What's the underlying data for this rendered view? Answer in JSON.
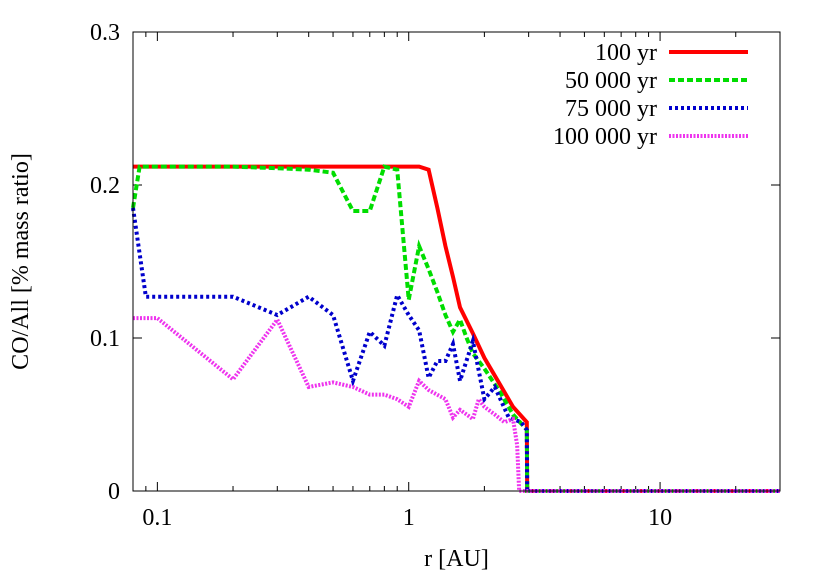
{
  "chart_data": {
    "type": "line",
    "xlabel": "r [AU]",
    "ylabel": "CO/All [% mass ratio]",
    "xscale": "log",
    "xlim": [
      0.08,
      30
    ],
    "ylim": [
      0,
      0.3
    ],
    "x_ticks": [
      {
        "value": 0.1,
        "label": "0.1"
      },
      {
        "value": 1,
        "label": "1"
      },
      {
        "value": 10,
        "label": "10"
      }
    ],
    "y_ticks": [
      {
        "value": 0,
        "label": "0"
      },
      {
        "value": 0.1,
        "label": "0.1"
      },
      {
        "value": 0.2,
        "label": "0.2"
      },
      {
        "value": 0.3,
        "label": "0.3"
      }
    ],
    "grid": false,
    "legend_position": "top-right",
    "series": [
      {
        "name": "100 yr",
        "color": "#ff0000",
        "style": "solid",
        "points": [
          [
            0.08,
            0.212
          ],
          [
            0.1,
            0.212
          ],
          [
            0.2,
            0.212
          ],
          [
            0.5,
            0.212
          ],
          [
            0.8,
            0.212
          ],
          [
            1.0,
            0.212
          ],
          [
            1.1,
            0.212
          ],
          [
            1.2,
            0.21
          ],
          [
            1.3,
            0.185
          ],
          [
            1.4,
            0.16
          ],
          [
            1.5,
            0.14
          ],
          [
            1.6,
            0.12
          ],
          [
            1.8,
            0.103
          ],
          [
            2.0,
            0.087
          ],
          [
            2.3,
            0.07
          ],
          [
            2.6,
            0.055
          ],
          [
            2.95,
            0.045
          ],
          [
            2.96,
            0
          ],
          [
            10,
            0
          ],
          [
            30,
            0
          ]
        ]
      },
      {
        "name": "50 000 yr",
        "color": "#00dd00",
        "style": "dashed",
        "points": [
          [
            0.08,
            0.185
          ],
          [
            0.085,
            0.212
          ],
          [
            0.1,
            0.212
          ],
          [
            0.2,
            0.212
          ],
          [
            0.3,
            0.211
          ],
          [
            0.4,
            0.21
          ],
          [
            0.5,
            0.208
          ],
          [
            0.6,
            0.183
          ],
          [
            0.7,
            0.183
          ],
          [
            0.8,
            0.212
          ],
          [
            0.9,
            0.21
          ],
          [
            1.0,
            0.125
          ],
          [
            1.1,
            0.16
          ],
          [
            1.2,
            0.145
          ],
          [
            1.3,
            0.13
          ],
          [
            1.4,
            0.115
          ],
          [
            1.5,
            0.104
          ],
          [
            1.6,
            0.112
          ],
          [
            1.7,
            0.1
          ],
          [
            1.8,
            0.09
          ],
          [
            2.0,
            0.08
          ],
          [
            2.3,
            0.065
          ],
          [
            2.6,
            0.05
          ],
          [
            2.95,
            0.04
          ],
          [
            2.96,
            0
          ],
          [
            10,
            0
          ],
          [
            30,
            0
          ]
        ]
      },
      {
        "name": "75 000 yr",
        "color": "#0000cc",
        "style": "dotted",
        "points": [
          [
            0.08,
            0.185
          ],
          [
            0.09,
            0.127
          ],
          [
            0.1,
            0.127
          ],
          [
            0.2,
            0.127
          ],
          [
            0.3,
            0.115
          ],
          [
            0.4,
            0.127
          ],
          [
            0.5,
            0.115
          ],
          [
            0.6,
            0.072
          ],
          [
            0.7,
            0.104
          ],
          [
            0.8,
            0.095
          ],
          [
            0.9,
            0.128
          ],
          [
            1.0,
            0.115
          ],
          [
            1.1,
            0.105
          ],
          [
            1.2,
            0.074
          ],
          [
            1.3,
            0.085
          ],
          [
            1.4,
            0.085
          ],
          [
            1.5,
            0.096
          ],
          [
            1.6,
            0.072
          ],
          [
            1.8,
            0.098
          ],
          [
            2.0,
            0.06
          ],
          [
            2.2,
            0.068
          ],
          [
            2.5,
            0.048
          ],
          [
            2.8,
            0.045
          ],
          [
            2.95,
            0.04
          ],
          [
            2.96,
            0
          ],
          [
            10,
            0
          ],
          [
            30,
            0
          ]
        ]
      },
      {
        "name": "100 000 yr",
        "color": "#ee33ee",
        "style": "dense-dotted",
        "points": [
          [
            0.08,
            0.113
          ],
          [
            0.1,
            0.113
          ],
          [
            0.2,
            0.073
          ],
          [
            0.3,
            0.112
          ],
          [
            0.4,
            0.068
          ],
          [
            0.5,
            0.071
          ],
          [
            0.6,
            0.068
          ],
          [
            0.7,
            0.063
          ],
          [
            0.8,
            0.063
          ],
          [
            0.9,
            0.06
          ],
          [
            1.0,
            0.055
          ],
          [
            1.1,
            0.072
          ],
          [
            1.2,
            0.066
          ],
          [
            1.4,
            0.06
          ],
          [
            1.5,
            0.048
          ],
          [
            1.6,
            0.053
          ],
          [
            1.7,
            0.05
          ],
          [
            1.8,
            0.047
          ],
          [
            1.9,
            0.06
          ],
          [
            2.0,
            0.055
          ],
          [
            2.2,
            0.05
          ],
          [
            2.4,
            0.045
          ],
          [
            2.6,
            0.047
          ],
          [
            2.7,
            0.03
          ],
          [
            2.75,
            0
          ],
          [
            10,
            0
          ],
          [
            30,
            0
          ]
        ]
      }
    ]
  }
}
